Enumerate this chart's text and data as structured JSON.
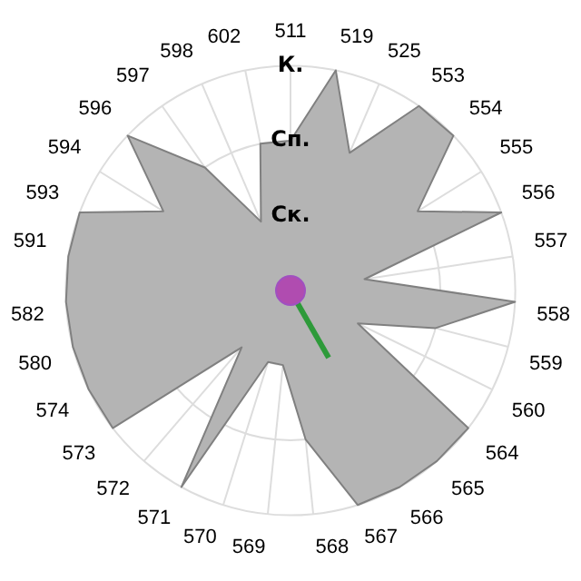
{
  "chart_data": {
    "type": "radar",
    "categories": [
      "511",
      "519",
      "525",
      "553",
      "554",
      "555",
      "556",
      "557",
      "558",
      "559",
      "560",
      "564",
      "565",
      "566",
      "567",
      "568",
      "569",
      "570",
      "571",
      "572",
      "573",
      "574",
      "580",
      "582",
      "591",
      "593",
      "594",
      "596",
      "597",
      "598",
      "602"
    ],
    "series": [
      {
        "color": "#b4b4b4",
        "values": [
          2,
          3,
          2,
          3,
          3,
          2,
          3,
          1,
          3,
          2,
          1,
          3,
          3,
          3,
          3,
          2,
          1,
          1,
          3,
          1,
          3,
          3,
          3,
          3,
          3,
          3,
          2,
          3,
          2,
          1,
          2
        ]
      }
    ],
    "ylim": [
      0,
      3
    ],
    "yticks": [
      {
        "value": 1,
        "label": "Ск."
      },
      {
        "value": 2,
        "label": "Сп."
      },
      {
        "value": 3,
        "label": "К."
      }
    ],
    "grid": true,
    "legend": false,
    "marker": "none"
  }
}
